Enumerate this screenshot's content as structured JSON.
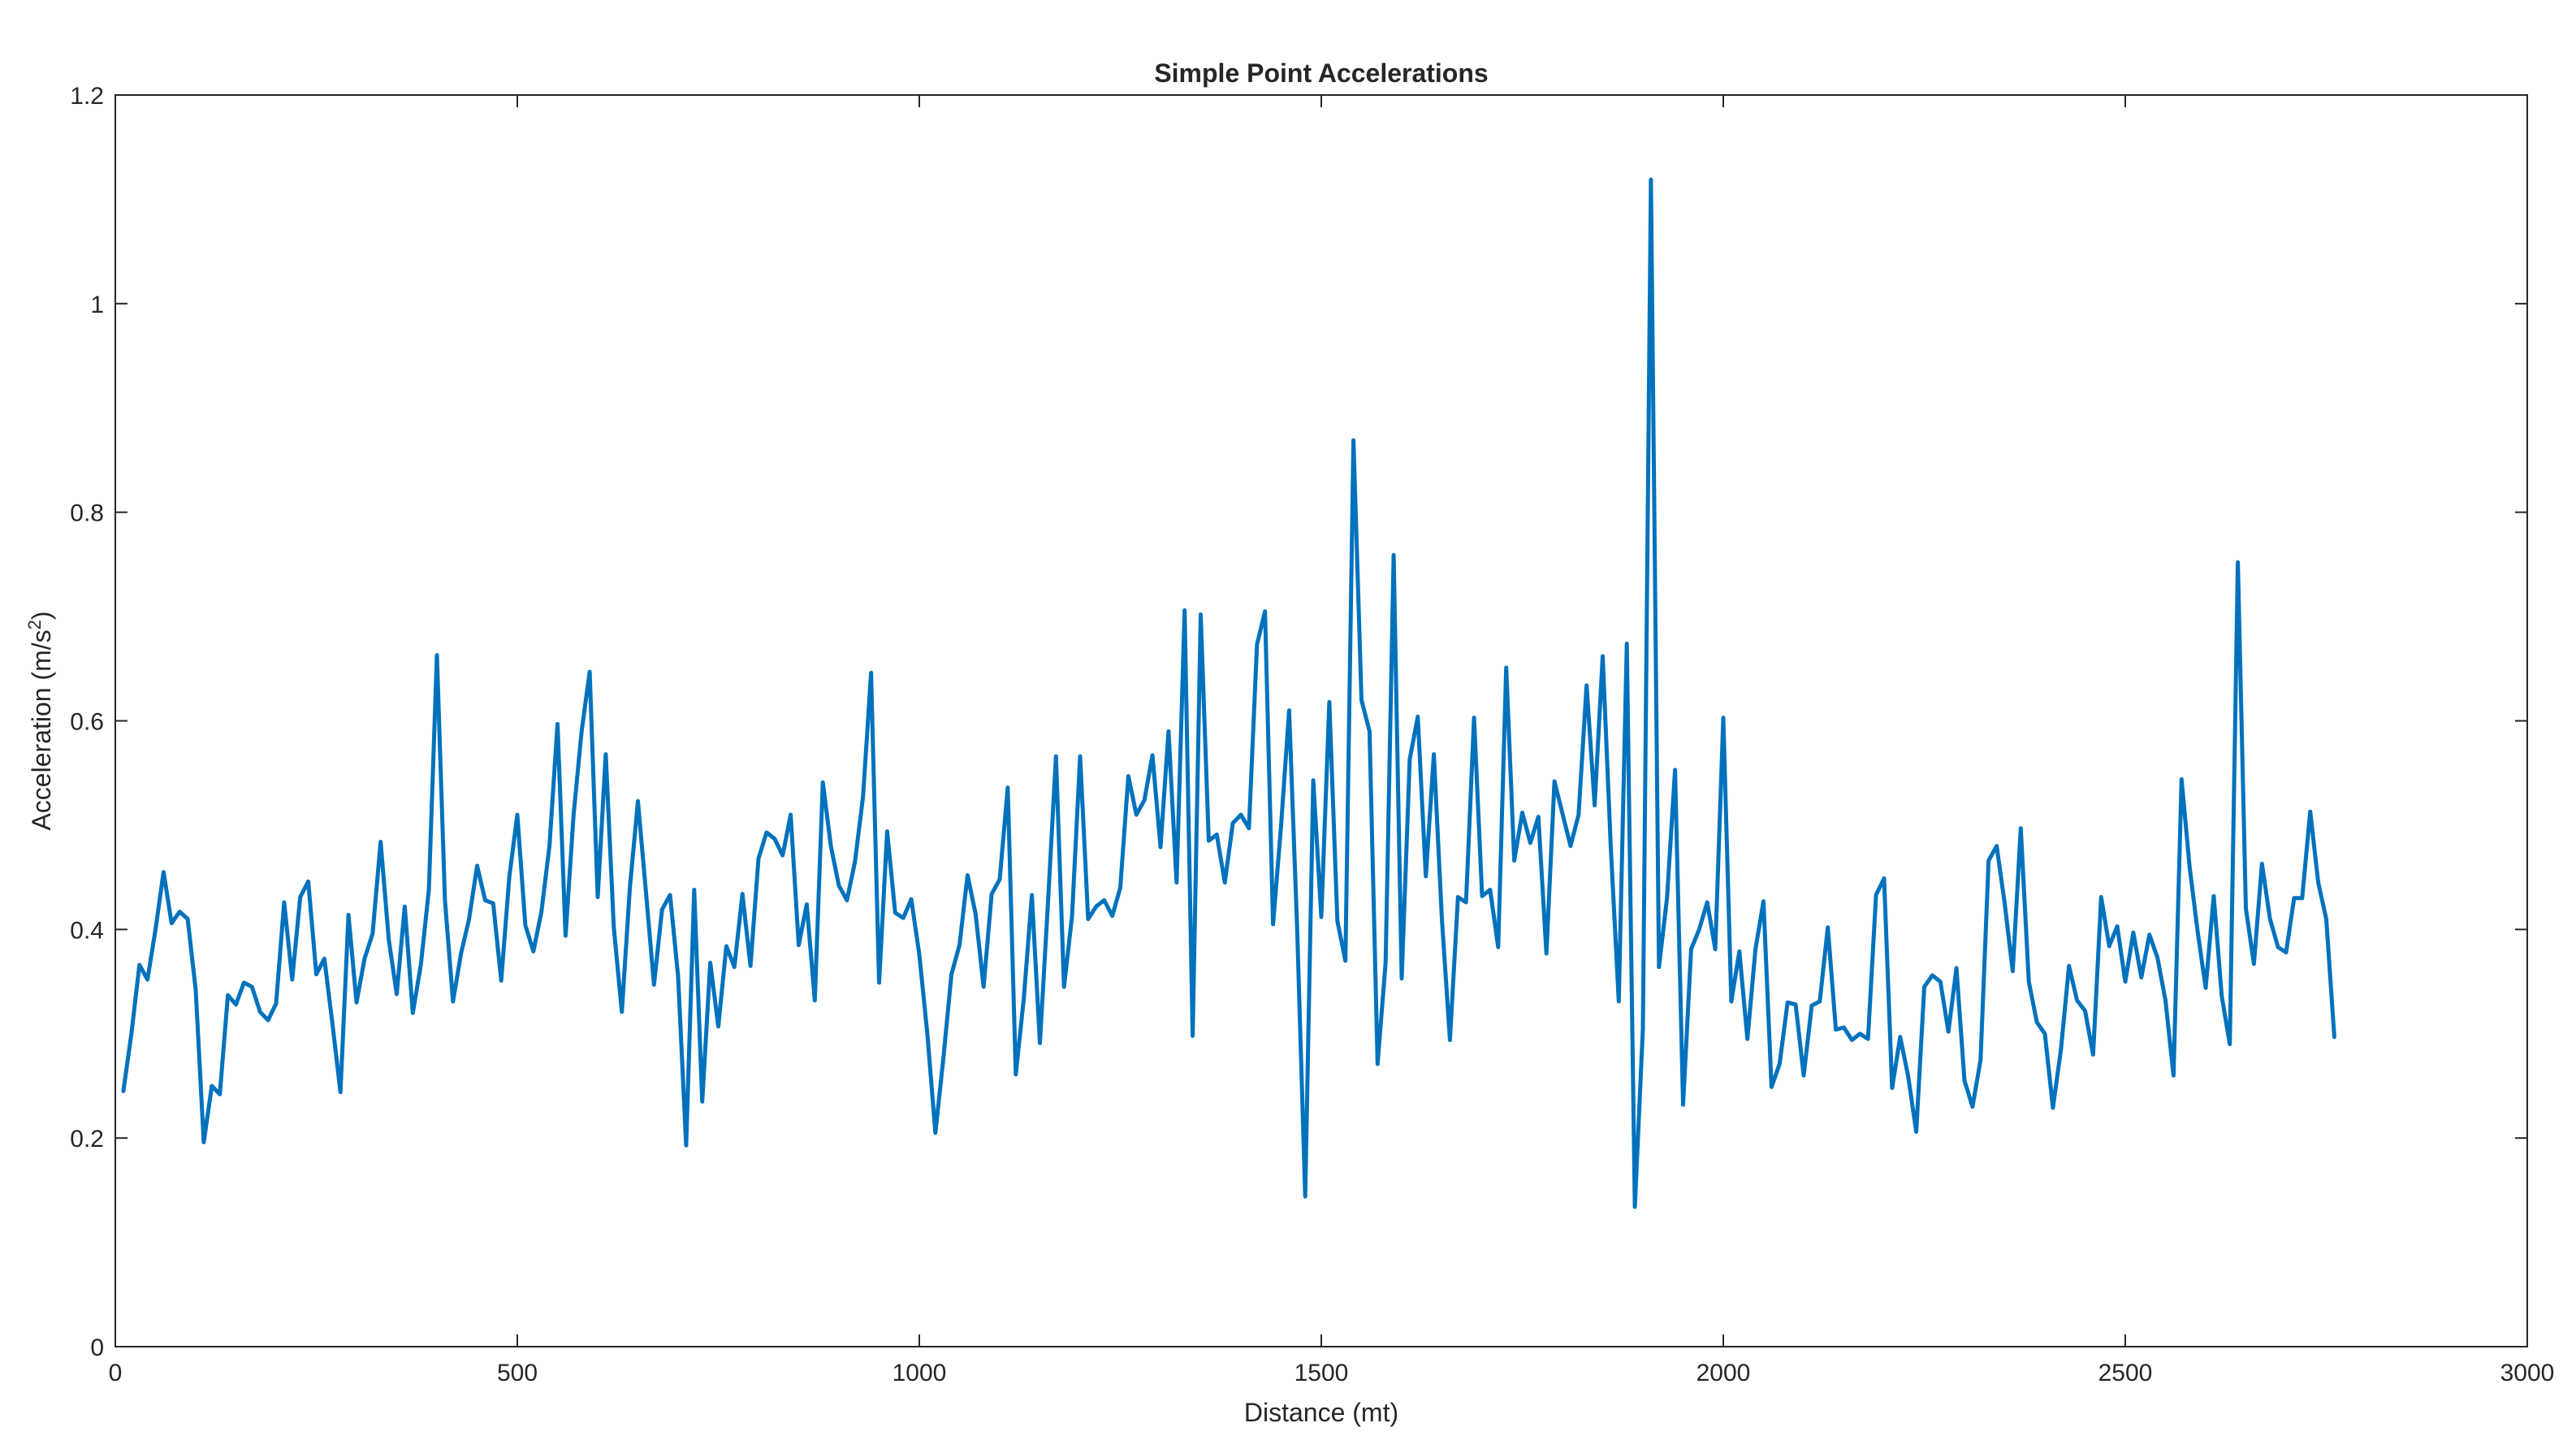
{
  "chart_data": {
    "type": "line",
    "title": "Simple Point Accelerations",
    "xlabel": "Distance (mt)",
    "ylabel_main": "Acceleration (m/s",
    "ylabel_sup": "2",
    "ylabel_end": ")",
    "xlim": [
      0,
      3000
    ],
    "ylim": [
      0,
      1.2
    ],
    "xticks": [
      0,
      500,
      1000,
      1500,
      2000,
      2500,
      3000
    ],
    "yticks": [
      0,
      0.2,
      0.4,
      0.6,
      0.8,
      1,
      1.2
    ],
    "xtick_labels": [
      "0",
      "500",
      "1000",
      "1500",
      "2000",
      "2500",
      "3000"
    ],
    "ytick_labels": [
      "0",
      "0.2",
      "0.4",
      "0.6",
      "0.8",
      "1",
      "1.2"
    ],
    "grid": false,
    "series": [
      {
        "color": "#0072BD",
        "x": [
          10,
          20,
          30,
          40,
          50,
          60,
          70,
          80,
          90,
          100,
          110,
          120,
          130,
          140,
          150,
          160,
          170,
          180,
          190,
          200,
          210,
          220,
          230,
          240,
          250,
          260,
          270,
          280,
          290,
          300,
          310,
          320,
          330,
          340,
          350,
          360,
          370,
          380,
          390,
          400,
          410,
          420,
          430,
          440,
          450,
          460,
          470,
          480,
          490,
          500,
          510,
          520,
          530,
          540,
          550,
          560,
          570,
          580,
          590,
          600,
          610,
          620,
          630,
          640,
          650,
          660,
          670,
          680,
          690,
          700,
          710,
          720,
          730,
          740,
          750,
          760,
          770,
          780,
          790,
          800,
          810,
          820,
          830,
          840,
          850,
          860,
          870,
          880,
          890,
          900,
          910,
          920,
          930,
          940,
          950,
          960,
          970,
          980,
          990,
          1000,
          1010,
          1020,
          1030,
          1040,
          1050,
          1060,
          1070,
          1080,
          1090,
          1100,
          1110,
          1120,
          1130,
          1140,
          1150,
          1160,
          1170,
          1180,
          1190,
          1200,
          1210,
          1220,
          1230,
          1240,
          1250,
          1260,
          1270,
          1280,
          1290,
          1300,
          1310,
          1320,
          1330,
          1340,
          1350,
          1360,
          1370,
          1380,
          1390,
          1400,
          1410,
          1420,
          1430,
          1440,
          1450,
          1460,
          1470,
          1480,
          1490,
          1500,
          1510,
          1520,
          1530,
          1540,
          1550,
          1560,
          1570,
          1580,
          1590,
          1600,
          1610,
          1620,
          1630,
          1640,
          1650,
          1660,
          1670,
          1680,
          1690,
          1700,
          1710,
          1720,
          1730,
          1740,
          1750,
          1760,
          1770,
          1780,
          1790,
          1800,
          1810,
          1820,
          1830,
          1840,
          1850,
          1860,
          1870,
          1880,
          1890,
          1900,
          1910,
          1920,
          1930,
          1940,
          1950,
          1960,
          1970,
          1980,
          1990,
          2000,
          2010,
          2020,
          2030,
          2040,
          2050,
          2060,
          2070,
          2080,
          2090,
          2100,
          2110,
          2120,
          2130,
          2140,
          2150,
          2160,
          2170,
          2180,
          2190,
          2200,
          2210,
          2220,
          2230,
          2240,
          2250,
          2260,
          2270,
          2280,
          2290,
          2300,
          2310,
          2320,
          2330,
          2340,
          2350,
          2360,
          2370,
          2380,
          2390,
          2400,
          2410,
          2420,
          2430,
          2440,
          2450,
          2460,
          2470,
          2480,
          2490,
          2500,
          2510,
          2520,
          2530,
          2540,
          2550,
          2560,
          2570,
          2580,
          2590,
          2600,
          2610,
          2620,
          2630,
          2640,
          2650,
          2660,
          2670,
          2680,
          2690,
          2700,
          2710,
          2720,
          2730,
          2740,
          2750,
          2760
        ],
        "y": [
          0.245,
          0.3,
          0.366,
          0.352,
          0.4,
          0.455,
          0.406,
          0.417,
          0.41,
          0.342,
          0.196,
          0.25,
          0.242,
          0.337,
          0.328,
          0.349,
          0.345,
          0.321,
          0.313,
          0.329,
          0.426,
          0.352,
          0.431,
          0.446,
          0.357,
          0.372,
          0.31,
          0.244,
          0.414,
          0.33,
          0.372,
          0.396,
          0.484,
          0.391,
          0.338,
          0.422,
          0.32,
          0.366,
          0.438,
          0.663,
          0.428,
          0.331,
          0.377,
          0.41,
          0.461,
          0.428,
          0.425,
          0.351,
          0.45,
          0.51,
          0.404,
          0.379,
          0.417,
          0.48,
          0.597,
          0.394,
          0.51,
          0.59,
          0.647,
          0.431,
          0.568,
          0.402,
          0.321,
          0.44,
          0.523,
          0.436,
          0.347,
          0.419,
          0.433,
          0.355,
          0.193,
          0.438,
          0.235,
          0.368,
          0.307,
          0.384,
          0.364,
          0.434,
          0.365,
          0.468,
          0.493,
          0.487,
          0.471,
          0.51,
          0.385,
          0.424,
          0.332,
          0.541,
          0.48,
          0.442,
          0.428,
          0.465,
          0.527,
          0.646,
          0.349,
          0.494,
          0.416,
          0.411,
          0.429,
          0.376,
          0.3,
          0.205,
          0.277,
          0.357,
          0.385,
          0.452,
          0.415,
          0.345,
          0.434,
          0.448,
          0.536,
          0.261,
          0.334,
          0.433,
          0.291,
          0.425,
          0.566,
          0.345,
          0.413,
          0.566,
          0.41,
          0.422,
          0.428,
          0.413,
          0.44,
          0.547,
          0.51,
          0.524,
          0.567,
          0.479,
          0.59,
          0.445,
          0.706,
          0.298,
          0.702,
          0.485,
          0.491,
          0.445,
          0.502,
          0.51,
          0.497,
          0.673,
          0.705,
          0.405,
          0.5,
          0.61,
          0.4,
          0.144,
          0.543,
          0.412,
          0.618,
          0.408,
          0.37,
          0.869,
          0.62,
          0.59,
          0.271,
          0.368,
          0.759,
          0.353,
          0.563,
          0.604,
          0.451,
          0.568,
          0.41,
          0.294,
          0.431,
          0.426,
          0.603,
          0.432,
          0.438,
          0.383,
          0.651,
          0.466,
          0.512,
          0.483,
          0.508,
          0.377,
          0.542,
          0.511,
          0.48,
          0.51,
          0.634,
          0.519,
          0.662,
          0.48,
          0.331,
          0.674,
          0.134,
          0.305,
          1.119,
          0.364,
          0.43,
          0.553,
          0.232,
          0.381,
          0.4,
          0.426,
          0.381,
          0.603,
          0.331,
          0.379,
          0.295,
          0.381,
          0.427,
          0.249,
          0.271,
          0.33,
          0.328,
          0.26,
          0.327,
          0.331,
          0.402,
          0.304,
          0.306,
          0.294,
          0.3,
          0.295,
          0.433,
          0.449,
          0.248,
          0.297,
          0.259,
          0.206,
          0.345,
          0.356,
          0.35,
          0.302,
          0.363,
          0.255,
          0.23,
          0.275,
          0.466,
          0.48,
          0.425,
          0.36,
          0.497,
          0.35,
          0.311,
          0.3,
          0.229,
          0.285,
          0.365,
          0.332,
          0.322,
          0.28,
          0.431,
          0.384,
          0.403,
          0.35,
          0.397,
          0.354,
          0.395,
          0.373,
          0.332,
          0.26,
          0.544,
          0.46,
          0.398,
          0.344,
          0.432,
          0.336,
          0.29,
          0.752,
          0.42,
          0.367,
          0.463,
          0.41,
          0.383,
          0.378,
          0.43,
          0.43,
          0.513,
          0.445,
          0.41,
          0.297
        ]
      }
    ]
  }
}
